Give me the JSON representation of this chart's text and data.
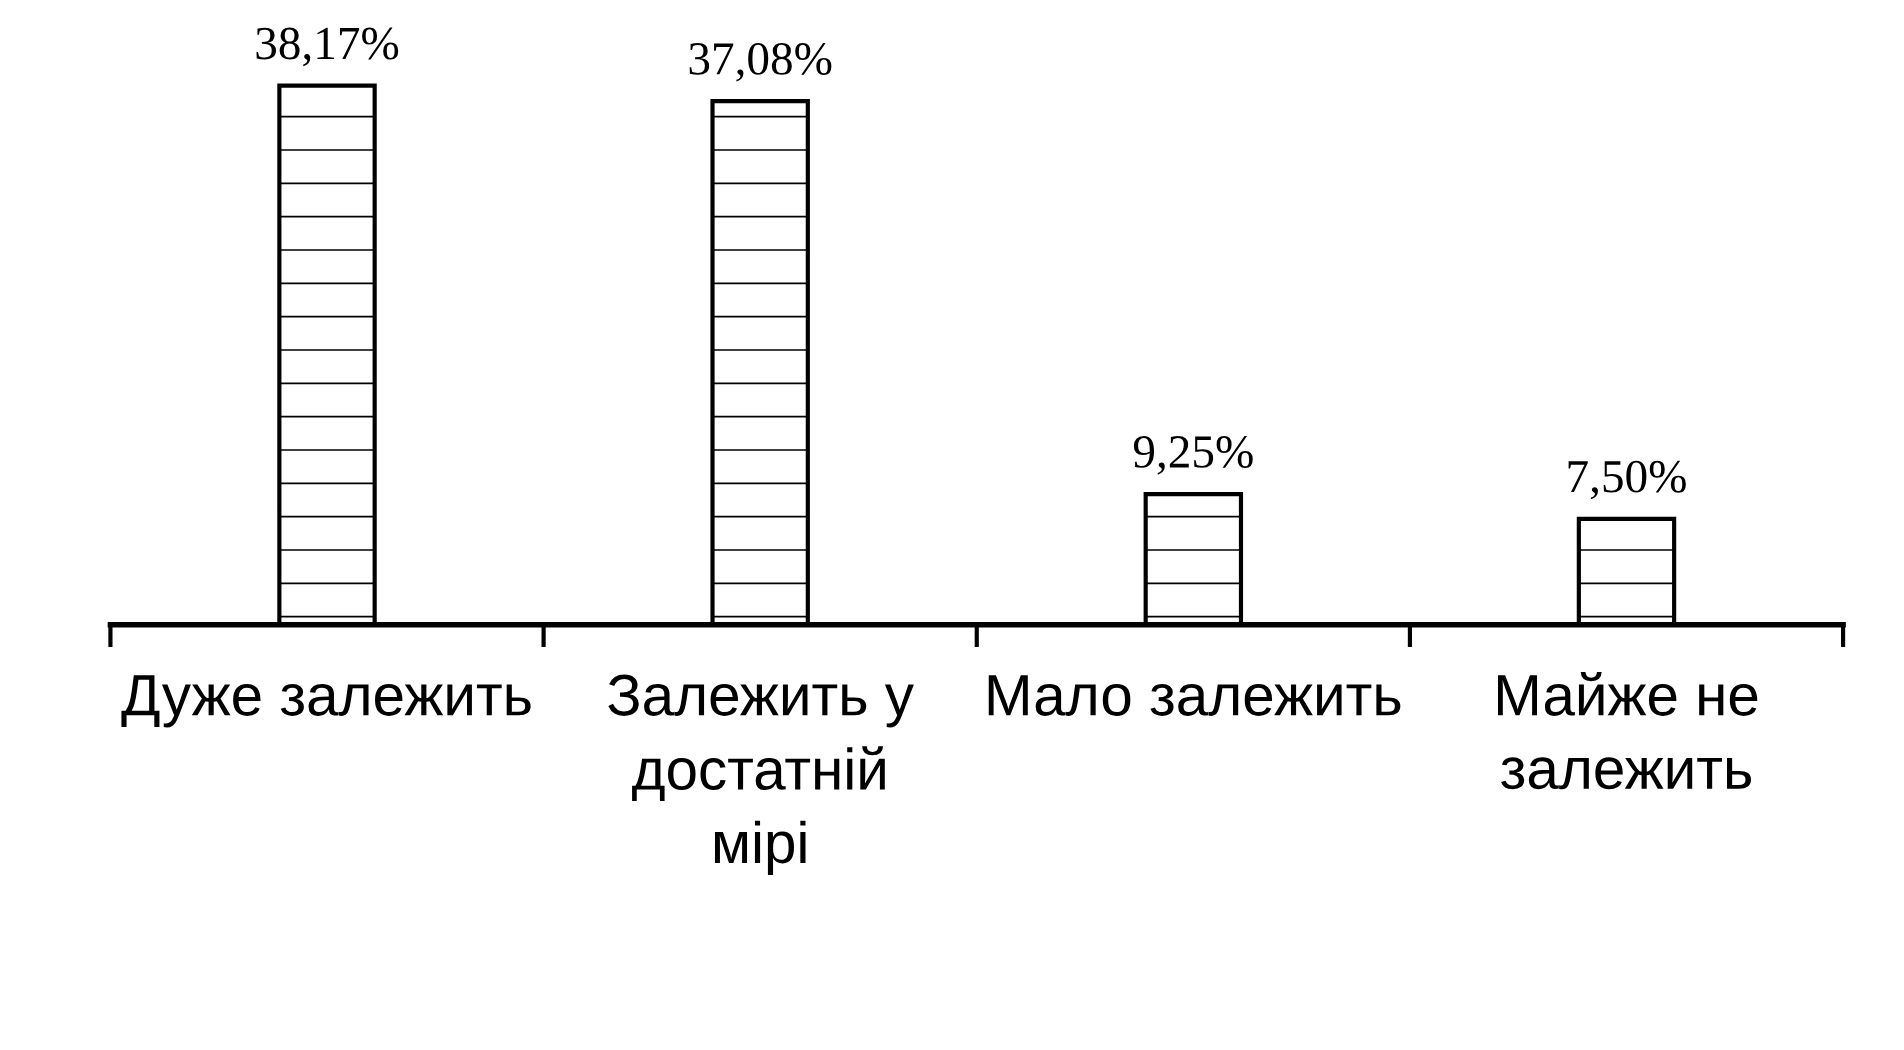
{
  "chart_data": {
    "type": "bar",
    "categories": [
      "Дуже залежить",
      "Залежить у достатній мірі",
      "Мало залежить",
      "Майже не залежить"
    ],
    "values": [
      38.17,
      37.08,
      9.25,
      7.5
    ],
    "value_labels": [
      "38,17%",
      "37,08%",
      "9,25%",
      "7,50%"
    ],
    "color": "#ffffff"
  }
}
